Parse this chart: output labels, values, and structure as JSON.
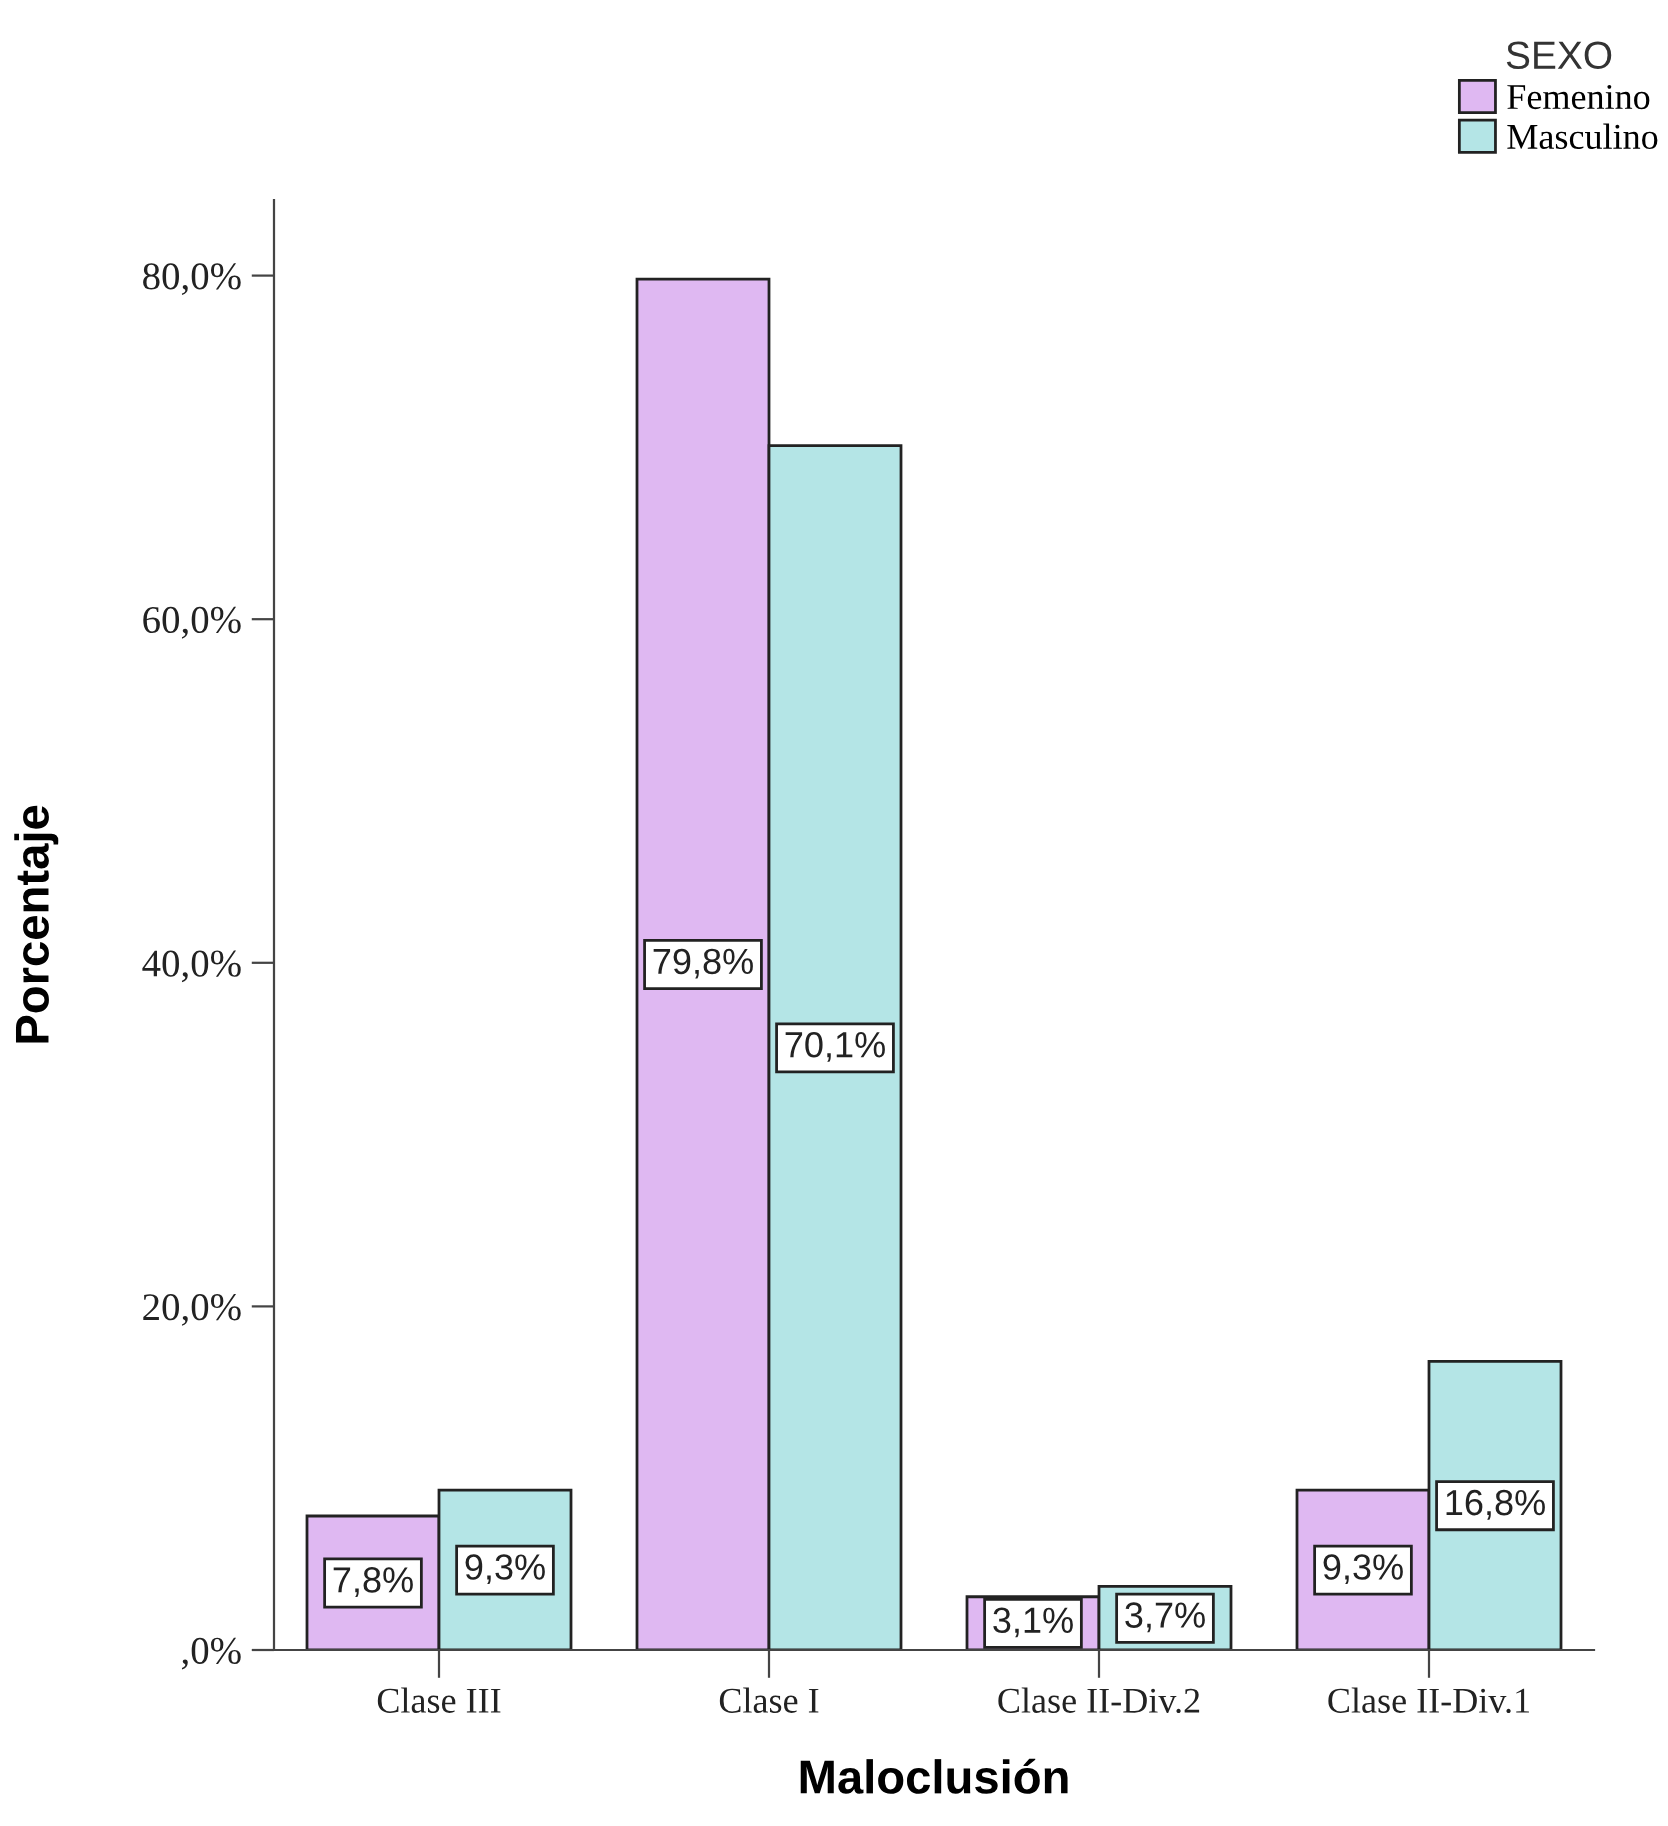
{
  "chart_data": {
    "type": "bar",
    "xlabel": "Maloclusión",
    "ylabel": "Porcentaje",
    "legend_title": "SEXO",
    "categories": [
      "Clase III",
      "Clase I",
      "Clase II-Div.2",
      "Clase II-Div.1"
    ],
    "series": [
      {
        "name": "Femenino",
        "color": "#dfb8f2",
        "values": [
          7.8,
          79.8,
          3.1,
          9.3
        ],
        "value_labels": [
          "7,8%",
          "79,8%",
          "3,1%",
          "9,3%"
        ]
      },
      {
        "name": "Masculino",
        "color": "#b4e5e6",
        "values": [
          9.3,
          70.1,
          3.7,
          16.8
        ],
        "value_labels": [
          "9,3%",
          "70,1%",
          "3,7%",
          "16,8%"
        ]
      }
    ],
    "ylim": [
      0,
      84.4
    ],
    "yticks": [
      {
        "value": 0,
        "label": ",0%"
      },
      {
        "value": 20,
        "label": "20,0%"
      },
      {
        "value": 40,
        "label": "40,0%"
      },
      {
        "value": 60,
        "label": "60,0%"
      },
      {
        "value": 80,
        "label": "80,0%"
      }
    ],
    "grid": false,
    "legend": "top right"
  }
}
